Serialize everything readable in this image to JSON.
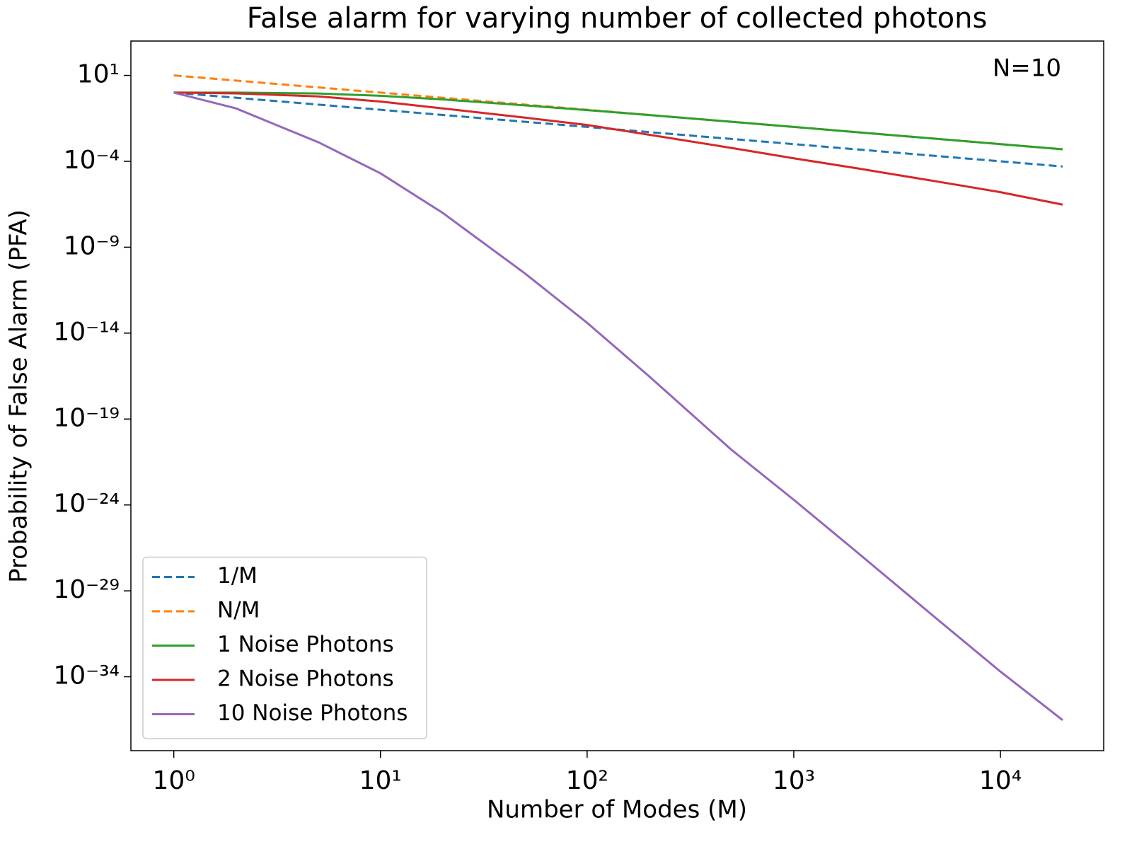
{
  "chart_data": {
    "type": "line",
    "title": "False alarm for varying number of collected photons",
    "xlabel": "Number of Modes (M)",
    "ylabel": "Probability of False Alarm (PFA)",
    "annotation": "N=10",
    "xscale": "log",
    "yscale": "log",
    "legend": "lower left",
    "x": [
      1,
      2,
      5,
      10,
      20,
      50,
      100,
      200,
      500,
      1000,
      2000,
      5000,
      10000,
      20000
    ],
    "series": [
      {
        "name": "1/M",
        "color": "#1f77b4",
        "dash": true,
        "values": [
          1,
          0.5,
          0.2,
          0.1,
          0.05,
          0.02,
          0.01,
          0.005,
          0.002,
          0.001,
          0.0005,
          0.0002,
          0.0001,
          5e-05
        ]
      },
      {
        "name": "N/M",
        "color": "#ff7f0e",
        "dash": true,
        "values": [
          10,
          5,
          2,
          1,
          0.5,
          0.2,
          0.1,
          0.05,
          0.02,
          0.01,
          0.005,
          0.002,
          0.001,
          0.0005
        ]
      },
      {
        "name": "1 Noise Photons",
        "color": "#2ca02c",
        "dash": false,
        "values": [
          1,
          0.999,
          0.89,
          0.65,
          0.4,
          0.18,
          0.096,
          0.049,
          0.02,
          0.01,
          0.005,
          0.002,
          0.001,
          0.0005
        ]
      },
      {
        "name": "2 Noise Photons",
        "color": "#d62728",
        "dash": false,
        "values": [
          1,
          0.9,
          0.6,
          0.3,
          0.12,
          0.035,
          0.013,
          0.0035,
          0.0006,
          0.00015,
          4e-05,
          6.5e-06,
          1.6e-06,
          3e-07
        ]
      },
      {
        "name": "10 Noise Photons",
        "color": "#9467bd",
        "dash": false,
        "values": [
          1,
          0.12,
          0.0013,
          2e-05,
          1e-07,
          3e-11,
          4e-14,
          3e-17,
          1.6e-21,
          2e-24,
          2e-27,
          2e-31,
          2e-34,
          3e-37
        ]
      }
    ],
    "xlim": [
      0.62,
      31600
    ],
    "ylim": [
      5e-39,
      1000
    ],
    "xticks": [
      {
        "value": 1,
        "label": "10⁰"
      },
      {
        "value": 10,
        "label": "10¹"
      },
      {
        "value": 100,
        "label": "10²"
      },
      {
        "value": 1000,
        "label": "10³"
      },
      {
        "value": 10000,
        "label": "10⁴"
      }
    ],
    "yticks": [
      {
        "value": 10,
        "label": "10¹"
      },
      {
        "value": 0.0001,
        "label": "10⁻⁴"
      },
      {
        "value": 1e-09,
        "label": "10⁻⁹"
      },
      {
        "value": 1e-14,
        "label": "10⁻¹⁴"
      },
      {
        "value": 1e-19,
        "label": "10⁻¹⁹"
      },
      {
        "value": 1e-24,
        "label": "10⁻²⁴"
      },
      {
        "value": 1e-29,
        "label": "10⁻²⁹"
      },
      {
        "value": 1e-34,
        "label": "10⁻³⁴"
      }
    ]
  }
}
